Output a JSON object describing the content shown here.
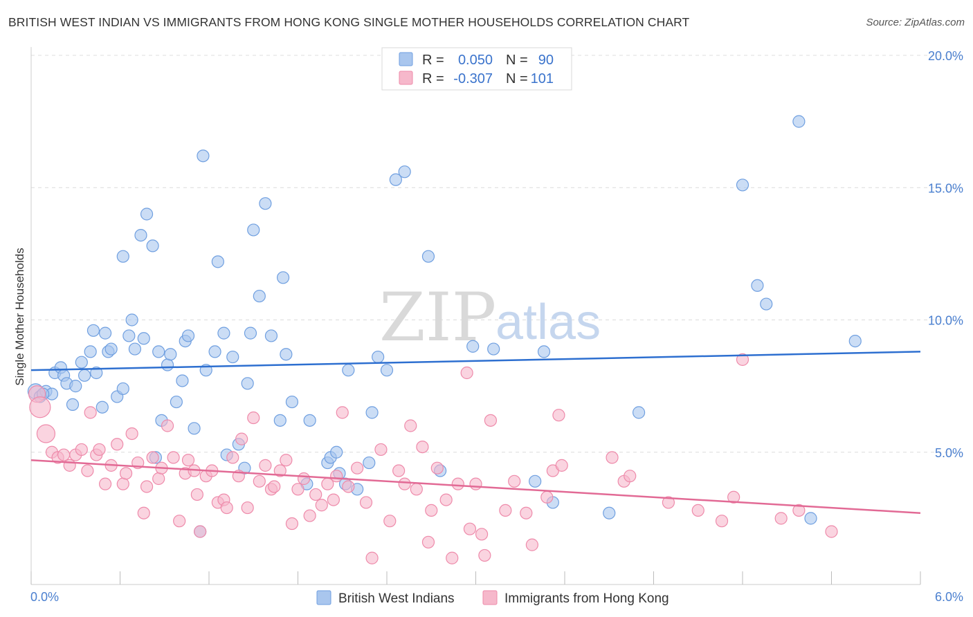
{
  "title": "BRITISH WEST INDIAN VS IMMIGRANTS FROM HONG KONG SINGLE MOTHER HOUSEHOLDS CORRELATION CHART",
  "source": "Source: ZipAtlas.com",
  "watermark": {
    "zip": "ZIP",
    "atlas": "atlas"
  },
  "colors": {
    "blue_fill": "#a9c6ee",
    "blue_stroke": "#6f9fe0",
    "blue_line": "#2d6fd0",
    "pink_fill": "#f6b8cb",
    "pink_stroke": "#ee8aaa",
    "pink_line": "#e26a95",
    "grid": "#dcdcdc",
    "tick_text": "#4a7fcf"
  },
  "stats": [
    {
      "r_label": "R =",
      "r_value": "0.050",
      "n_label": "N =",
      "n_value": "90"
    },
    {
      "r_label": "R =",
      "r_value": "-0.307",
      "n_label": "N =",
      "n_value": "101"
    }
  ],
  "chart_data": {
    "type": "scatter",
    "title": "BRITISH WEST INDIAN VS IMMIGRANTS FROM HONG KONG SINGLE MOTHER HOUSEHOLDS CORRELATION CHART",
    "xlabel": "",
    "ylabel": "Single Mother Households",
    "xlim": [
      0,
      6
    ],
    "ylim": [
      0,
      20
    ],
    "x_tick_labels": {
      "min": "0.0%",
      "max": "6.0%"
    },
    "y_ticks": [
      {
        "value": 5,
        "label": "5.0%"
      },
      {
        "value": 10,
        "label": "10.0%"
      },
      {
        "value": 15,
        "label": "15.0%"
      },
      {
        "value": 20,
        "label": "20.0%"
      }
    ],
    "grid": true,
    "legend_position": "bottom-center",
    "series": [
      {
        "name": "British West Indians",
        "trend": {
          "x0": 0,
          "y0": 8.1,
          "x1": 6,
          "y1": 8.8
        },
        "points": [
          [
            0.03,
            7.3
          ],
          [
            0.06,
            7.1
          ],
          [
            0.1,
            7.3
          ],
          [
            0.14,
            7.2
          ],
          [
            0.16,
            8.0
          ],
          [
            0.2,
            8.2
          ],
          [
            0.22,
            7.9
          ],
          [
            0.24,
            7.6
          ],
          [
            0.28,
            6.8
          ],
          [
            0.3,
            7.5
          ],
          [
            0.34,
            8.4
          ],
          [
            0.36,
            7.9
          ],
          [
            0.4,
            8.8
          ],
          [
            0.42,
            9.6
          ],
          [
            0.44,
            8.0
          ],
          [
            0.48,
            6.7
          ],
          [
            0.5,
            9.5
          ],
          [
            0.52,
            8.8
          ],
          [
            0.54,
            8.9
          ],
          [
            0.58,
            7.1
          ],
          [
            0.62,
            7.4
          ],
          [
            0.62,
            12.4
          ],
          [
            0.66,
            9.4
          ],
          [
            0.68,
            10.0
          ],
          [
            0.7,
            8.9
          ],
          [
            0.74,
            13.2
          ],
          [
            0.76,
            9.3
          ],
          [
            0.78,
            14.0
          ],
          [
            0.82,
            12.8
          ],
          [
            0.84,
            4.8
          ],
          [
            0.86,
            8.8
          ],
          [
            0.88,
            6.2
          ],
          [
            0.92,
            8.3
          ],
          [
            0.94,
            8.7
          ],
          [
            0.98,
            6.9
          ],
          [
            1.02,
            7.7
          ],
          [
            1.04,
            9.2
          ],
          [
            1.06,
            9.4
          ],
          [
            1.1,
            5.9
          ],
          [
            1.14,
            2.0
          ],
          [
            1.16,
            16.2
          ],
          [
            1.18,
            8.1
          ],
          [
            1.24,
            8.8
          ],
          [
            1.26,
            12.2
          ],
          [
            1.3,
            9.5
          ],
          [
            1.32,
            4.9
          ],
          [
            1.36,
            8.6
          ],
          [
            1.4,
            5.3
          ],
          [
            1.44,
            4.4
          ],
          [
            1.46,
            7.6
          ],
          [
            1.48,
            9.5
          ],
          [
            1.5,
            13.4
          ],
          [
            1.54,
            10.9
          ],
          [
            1.58,
            14.4
          ],
          [
            1.62,
            9.4
          ],
          [
            1.68,
            6.2
          ],
          [
            1.7,
            11.6
          ],
          [
            1.72,
            8.7
          ],
          [
            1.76,
            6.9
          ],
          [
            1.86,
            3.8
          ],
          [
            1.88,
            6.2
          ],
          [
            2.0,
            4.6
          ],
          [
            2.02,
            4.8
          ],
          [
            2.06,
            5.0
          ],
          [
            2.08,
            4.2
          ],
          [
            2.12,
            3.8
          ],
          [
            2.14,
            8.1
          ],
          [
            2.2,
            3.6
          ],
          [
            2.28,
            4.6
          ],
          [
            2.3,
            6.5
          ],
          [
            2.34,
            8.6
          ],
          [
            2.4,
            8.1
          ],
          [
            2.46,
            15.3
          ],
          [
            2.52,
            15.6
          ],
          [
            2.68,
            12.4
          ],
          [
            2.76,
            4.3
          ],
          [
            2.98,
            9.0
          ],
          [
            3.12,
            8.9
          ],
          [
            3.4,
            3.9
          ],
          [
            3.46,
            8.8
          ],
          [
            3.52,
            3.1
          ],
          [
            3.9,
            2.7
          ],
          [
            4.1,
            6.5
          ],
          [
            4.8,
            15.1
          ],
          [
            4.9,
            11.3
          ],
          [
            4.96,
            10.6
          ],
          [
            5.18,
            17.5
          ],
          [
            5.26,
            2.5
          ],
          [
            5.56,
            9.2
          ],
          [
            0.08,
            7.2
          ]
        ]
      },
      {
        "name": "Immigrants from Hong Kong",
        "trend": {
          "x0": 0,
          "y0": 4.7,
          "x1": 6,
          "y1": 2.7
        },
        "points": [
          [
            0.04,
            7.2
          ],
          [
            0.06,
            6.7
          ],
          [
            0.1,
            5.7
          ],
          [
            0.14,
            5.0
          ],
          [
            0.18,
            4.8
          ],
          [
            0.22,
            4.9
          ],
          [
            0.26,
            4.5
          ],
          [
            0.3,
            4.9
          ],
          [
            0.34,
            5.1
          ],
          [
            0.38,
            4.3
          ],
          [
            0.4,
            6.5
          ],
          [
            0.44,
            4.9
          ],
          [
            0.46,
            5.1
          ],
          [
            0.5,
            3.8
          ],
          [
            0.54,
            4.5
          ],
          [
            0.58,
            5.3
          ],
          [
            0.62,
            3.8
          ],
          [
            0.64,
            4.2
          ],
          [
            0.68,
            5.7
          ],
          [
            0.72,
            4.6
          ],
          [
            0.76,
            2.7
          ],
          [
            0.78,
            3.7
          ],
          [
            0.82,
            4.8
          ],
          [
            0.86,
            4.0
          ],
          [
            0.88,
            4.4
          ],
          [
            0.92,
            6.0
          ],
          [
            0.96,
            4.8
          ],
          [
            1.0,
            2.4
          ],
          [
            1.04,
            4.2
          ],
          [
            1.06,
            4.7
          ],
          [
            1.1,
            4.3
          ],
          [
            1.12,
            3.4
          ],
          [
            1.14,
            2.0
          ],
          [
            1.18,
            4.1
          ],
          [
            1.22,
            4.3
          ],
          [
            1.26,
            3.1
          ],
          [
            1.3,
            3.2
          ],
          [
            1.32,
            2.9
          ],
          [
            1.36,
            4.8
          ],
          [
            1.4,
            4.1
          ],
          [
            1.42,
            5.5
          ],
          [
            1.46,
            2.9
          ],
          [
            1.5,
            6.3
          ],
          [
            1.54,
            3.9
          ],
          [
            1.58,
            4.5
          ],
          [
            1.62,
            3.6
          ],
          [
            1.64,
            3.7
          ],
          [
            1.68,
            4.3
          ],
          [
            1.72,
            4.7
          ],
          [
            1.76,
            2.3
          ],
          [
            1.8,
            3.6
          ],
          [
            1.84,
            4.0
          ],
          [
            1.88,
            2.6
          ],
          [
            1.92,
            3.4
          ],
          [
            1.96,
            3.0
          ],
          [
            2.0,
            3.8
          ],
          [
            2.04,
            3.2
          ],
          [
            2.06,
            4.1
          ],
          [
            2.1,
            6.5
          ],
          [
            2.14,
            3.7
          ],
          [
            2.2,
            4.4
          ],
          [
            2.26,
            3.1
          ],
          [
            2.3,
            1.0
          ],
          [
            2.36,
            5.1
          ],
          [
            2.42,
            2.4
          ],
          [
            2.48,
            4.3
          ],
          [
            2.52,
            3.8
          ],
          [
            2.56,
            6.0
          ],
          [
            2.6,
            3.6
          ],
          [
            2.64,
            5.2
          ],
          [
            2.68,
            1.6
          ],
          [
            2.7,
            2.8
          ],
          [
            2.74,
            4.4
          ],
          [
            2.8,
            3.2
          ],
          [
            2.84,
            1.0
          ],
          [
            2.88,
            3.8
          ],
          [
            2.94,
            8.0
          ],
          [
            2.96,
            2.1
          ],
          [
            3.0,
            3.8
          ],
          [
            3.04,
            1.9
          ],
          [
            3.06,
            1.1
          ],
          [
            3.1,
            6.2
          ],
          [
            3.2,
            2.8
          ],
          [
            3.26,
            3.9
          ],
          [
            3.34,
            2.7
          ],
          [
            3.38,
            1.5
          ],
          [
            3.48,
            3.3
          ],
          [
            3.52,
            4.3
          ],
          [
            3.56,
            6.4
          ],
          [
            3.58,
            4.5
          ],
          [
            3.92,
            4.8
          ],
          [
            4.0,
            3.9
          ],
          [
            4.04,
            4.1
          ],
          [
            4.3,
            3.1
          ],
          [
            4.5,
            2.8
          ],
          [
            4.66,
            2.4
          ],
          [
            4.74,
            3.3
          ],
          [
            4.8,
            8.5
          ],
          [
            5.06,
            2.5
          ],
          [
            5.18,
            2.8
          ],
          [
            5.4,
            2.0
          ]
        ]
      }
    ]
  }
}
